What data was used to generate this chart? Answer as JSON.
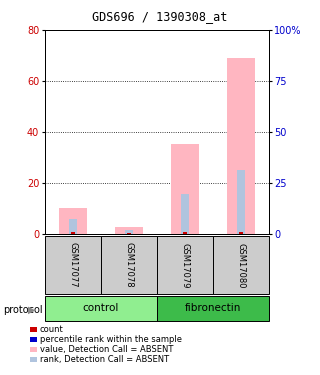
{
  "title": "GDS696 / 1390308_at",
  "samples": [
    "GSM17077",
    "GSM17078",
    "GSM17079",
    "GSM17080"
  ],
  "value_absent": [
    10.5,
    2.8,
    35.5,
    69.0
  ],
  "rank_absent": [
    7.5,
    2.2,
    20.0,
    31.5
  ],
  "count_value": [
    0.8,
    0.5,
    0.8,
    0.8
  ],
  "ylim_left": [
    0,
    80
  ],
  "ylim_right": [
    0,
    100
  ],
  "yticks_left": [
    0,
    20,
    40,
    60,
    80
  ],
  "yticks_right": [
    0,
    25,
    50,
    75,
    100
  ],
  "color_pink": "#ffb6c1",
  "color_lightblue": "#b0c4de",
  "color_red": "#cc0000",
  "color_blue": "#0000cc",
  "color_gray_bg": "#cccccc",
  "color_green_light": "#90ee90",
  "color_green_dark": "#3dbb4a",
  "label_count": "count",
  "label_rank": "percentile rank within the sample",
  "label_value_absent": "value, Detection Call = ABSENT",
  "label_rank_absent": "rank, Detection Call = ABSENT",
  "groups_info": [
    {
      "label": "control",
      "start": 0,
      "end": 1,
      "color": "#90ee90"
    },
    {
      "label": "fibronectin",
      "start": 2,
      "end": 3,
      "color": "#3dbb4a"
    }
  ]
}
